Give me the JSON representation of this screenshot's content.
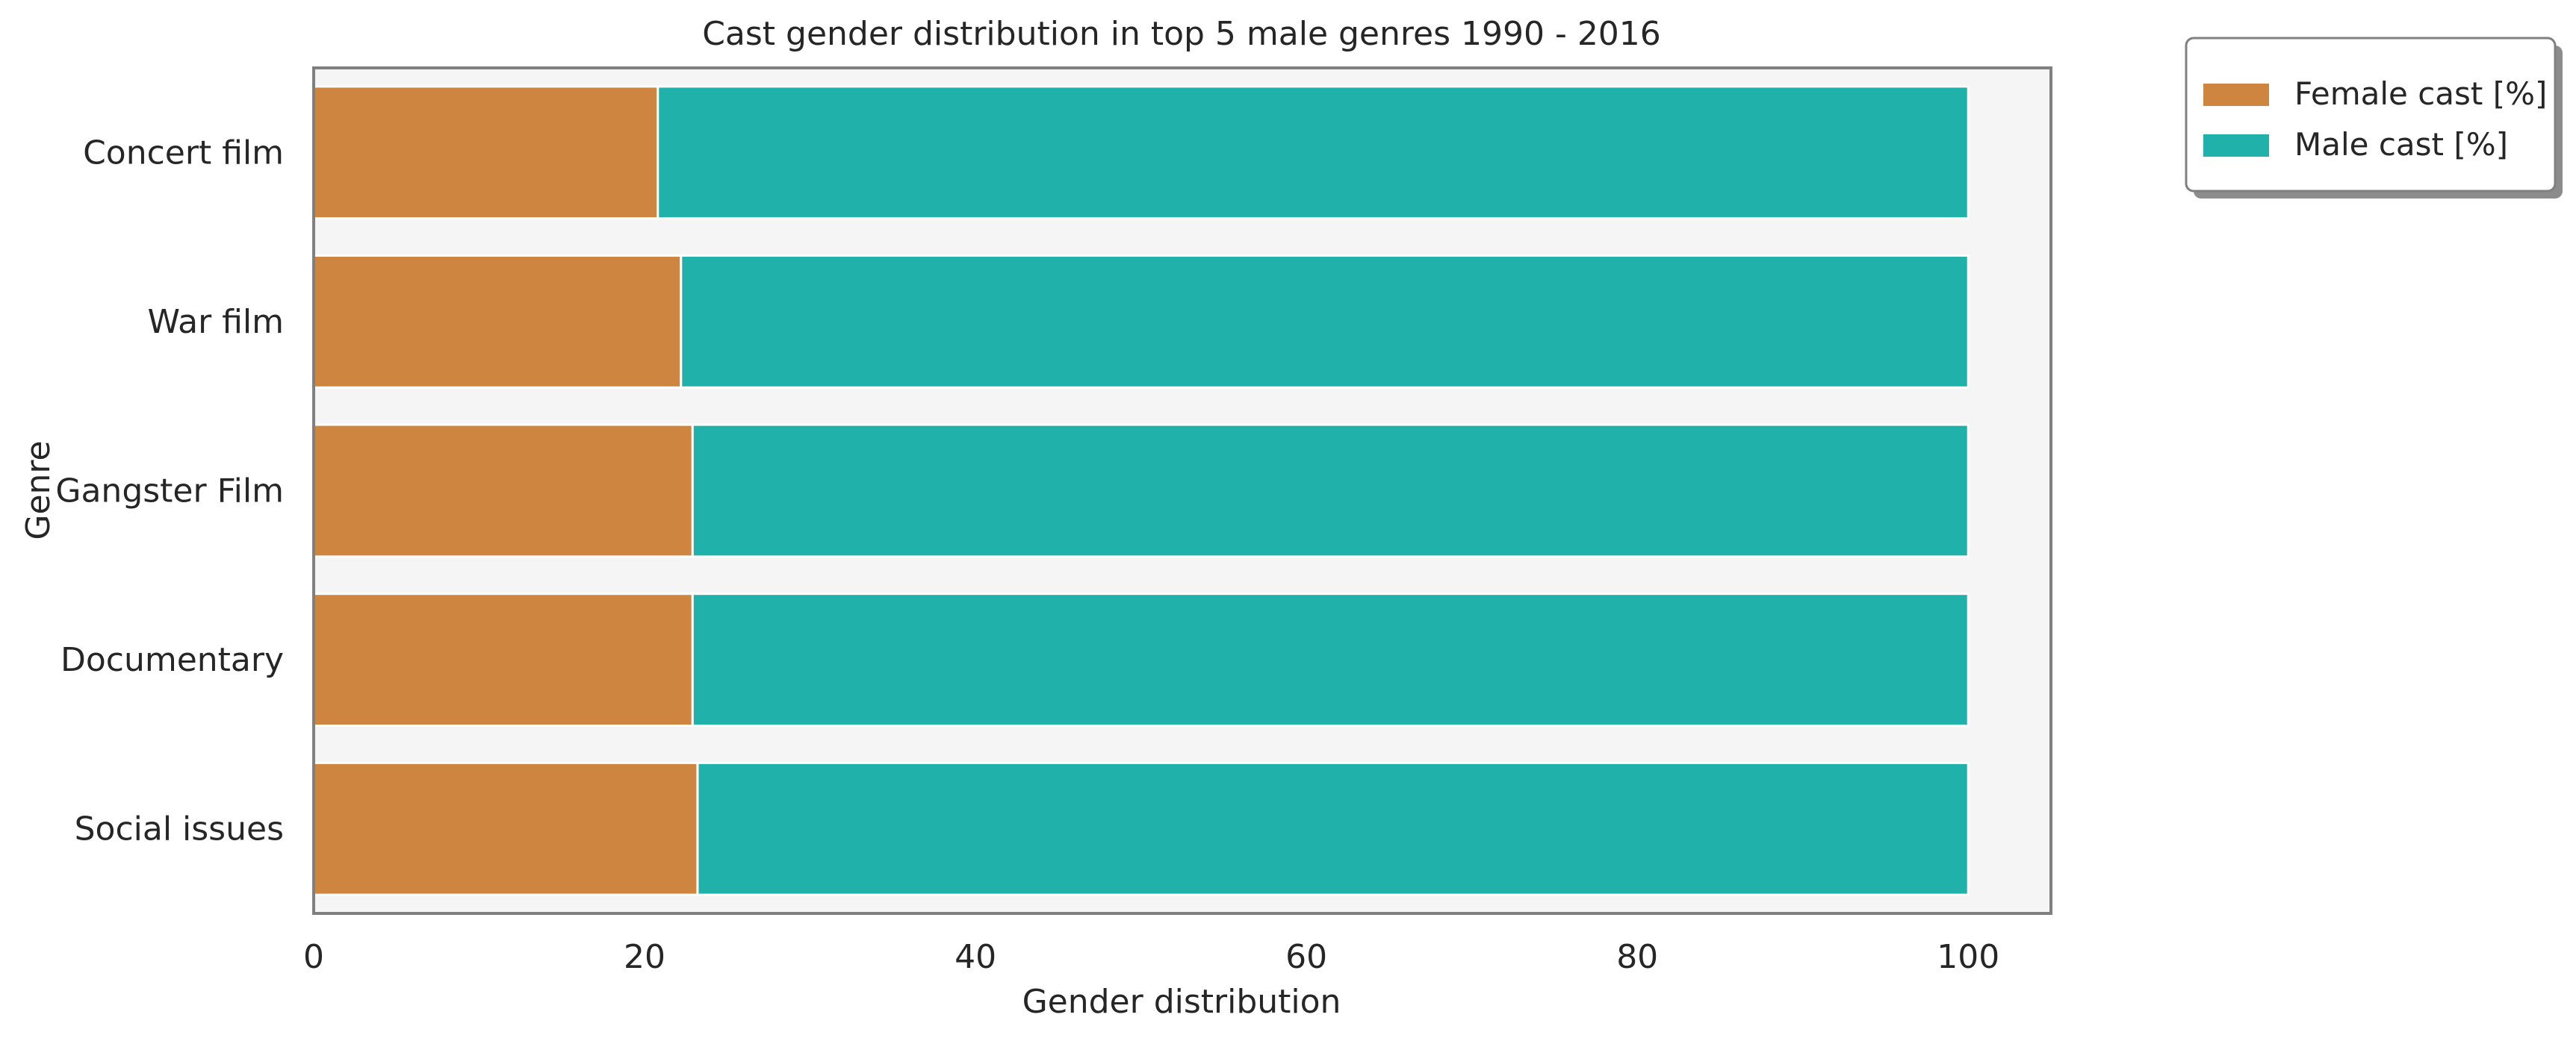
{
  "chart_data": {
    "type": "bar",
    "orientation": "horizontal",
    "stacked": true,
    "title": "Cast gender distribution in top 5 male genres 1990 - 2016",
    "xlabel": "Gender distribution",
    "ylabel": "Genre",
    "xlim": [
      0,
      105
    ],
    "xticks": [
      0,
      20,
      40,
      60,
      80,
      100
    ],
    "categories": [
      "Concert film",
      "War film",
      "Gangster Film",
      "Documentary",
      "Social issues"
    ],
    "series": [
      {
        "name": "Female cast [%]",
        "color": "#cd853f",
        "values": [
          20.8,
          22.2,
          22.9,
          22.9,
          23.2
        ]
      },
      {
        "name": "Male cast [%]",
        "color": "#20b2aa",
        "values": [
          79.2,
          77.8,
          77.1,
          77.1,
          76.8
        ]
      }
    ],
    "legend": {
      "position": "outside-top-right"
    },
    "grid": false,
    "plot_background": "#f5f5f5"
  }
}
